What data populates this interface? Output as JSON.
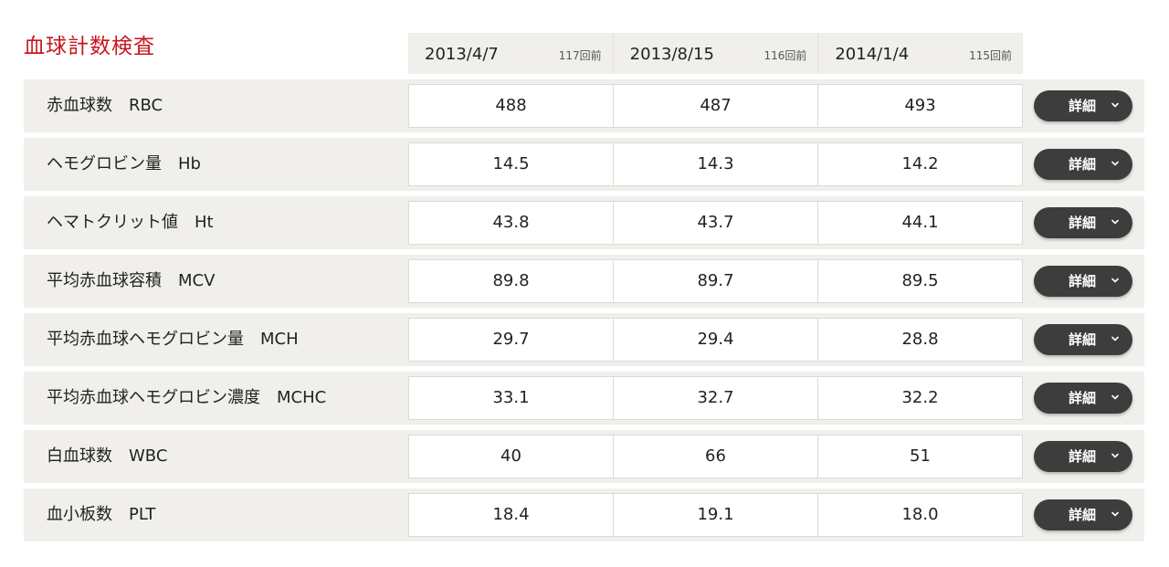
{
  "section": {
    "title": "血球計数検査"
  },
  "columns": [
    {
      "date": "2013/4/7",
      "count": "117回前"
    },
    {
      "date": "2013/8/15",
      "count": "116回前"
    },
    {
      "date": "2014/1/4",
      "count": "115回前"
    }
  ],
  "detail_label": "詳細",
  "rows": [
    {
      "label": "赤血球数　RBC",
      "values": [
        "488",
        "487",
        "493"
      ]
    },
    {
      "label": "ヘモグロビン量　Hb",
      "values": [
        "14.5",
        "14.3",
        "14.2"
      ]
    },
    {
      "label": "ヘマトクリット値　Ht",
      "values": [
        "43.8",
        "43.7",
        "44.1"
      ]
    },
    {
      "label": "平均赤血球容積　MCV",
      "values": [
        "89.8",
        "89.7",
        "89.5"
      ]
    },
    {
      "label": "平均赤血球ヘモグロビン量　MCH",
      "values": [
        "29.7",
        "29.4",
        "28.8"
      ]
    },
    {
      "label": "平均赤血球ヘモグロビン濃度　MCHC",
      "values": [
        "33.1",
        "32.7",
        "32.2"
      ]
    },
    {
      "label": "白血球数　WBC",
      "values": [
        "40",
        "66",
        "51"
      ]
    },
    {
      "label": "血小板数　PLT",
      "values": [
        "18.4",
        "19.1",
        "18.0"
      ]
    }
  ]
}
